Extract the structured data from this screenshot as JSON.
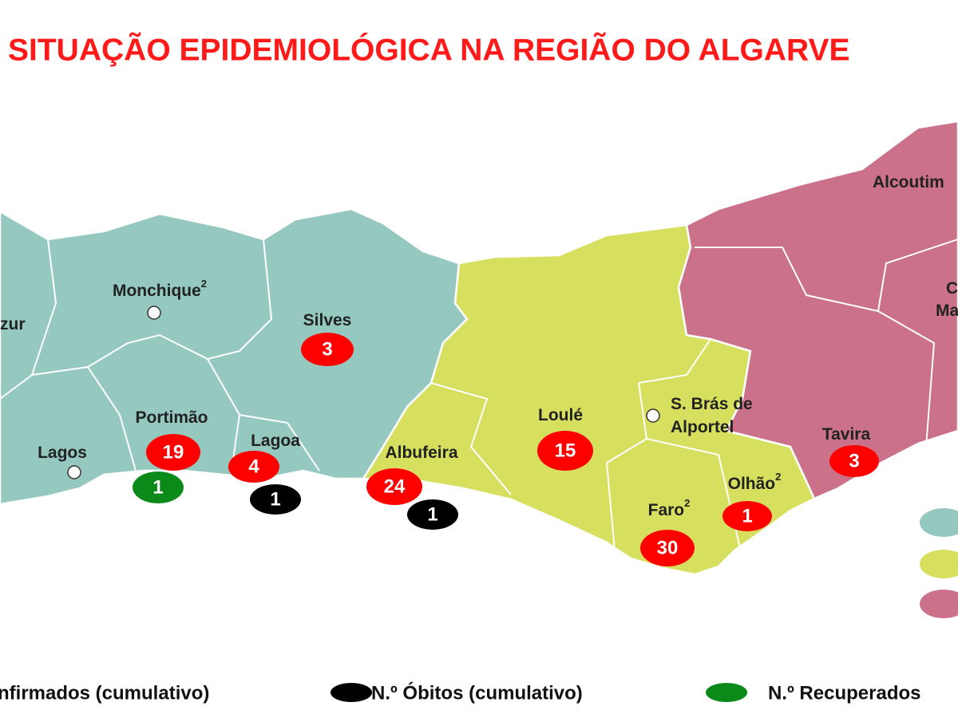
{
  "title": "SITUAÇÃO EPIDEMIOLÓGICA NA REGIÃO DO ALGARVE",
  "places": [
    {
      "label": "zur"
    },
    {
      "label": "Monchique",
      "note": "2"
    },
    {
      "label": "Silves"
    },
    {
      "label": "Portimão"
    },
    {
      "label": "Lagos"
    },
    {
      "label": "Lagoa"
    },
    {
      "label": "Albufeira"
    },
    {
      "label": "Loulé"
    },
    {
      "label": "S. Brás de"
    },
    {
      "label": "Alportel"
    },
    {
      "label": "Tavira"
    },
    {
      "label": "Olhão",
      "note": "2"
    },
    {
      "label": "Faro",
      "note": "2"
    },
    {
      "label": "Alcoutim"
    },
    {
      "label": "C"
    },
    {
      "label": "Ma"
    }
  ],
  "markers": [
    {
      "name": "nfirmados (cumulativo)",
      "color": "#ff0000",
      "values": [
        3,
        19,
        4,
        24,
        15,
        30,
        1,
        3
      ]
    },
    {
      "name": "N.º Óbitos (cumulativo)",
      "color": "#000000",
      "values": [
        1,
        1
      ]
    },
    {
      "name": "N.º Recuperados",
      "color": "#0b8a1a",
      "values": [
        1
      ]
    }
  ]
}
